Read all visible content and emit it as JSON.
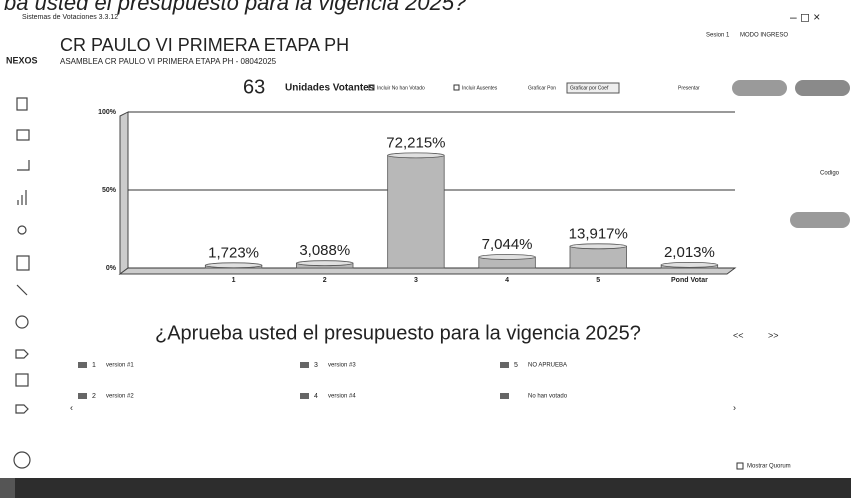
{
  "window": {
    "banner": "ba usted el presupuesto para la vigencia 2025?",
    "app_title": "Sistemas de Votaciones 3.3.12",
    "header": {
      "title": "CR PAULO VI PRIMERA ETAPA PH",
      "logo": "NEXOS",
      "subtitle": "ASAMBLEA CR PAULO VI PRIMERA ETAPA PH - 08042025",
      "session": "Sesion 1",
      "mode": "MODO INGRESO"
    },
    "toolbar": {
      "count": "63",
      "count_label": "Unidades Votantes",
      "options": [
        "Incluir No han Votado",
        "Incluir Ausentes"
      ],
      "graph_pon": "Graficar Pon",
      "graph_coef": "Graficar por Coef",
      "present": "Presentar"
    },
    "side_label": "Codigo",
    "question": "¿Aprueba usted el presupuesto para la vigencia 2025?",
    "nav": [
      "<<",
      ">>"
    ],
    "legend": [
      {
        "key": "1",
        "label": "version #1"
      },
      {
        "key": "2",
        "label": "version #2"
      },
      {
        "key": "3",
        "label": "version #3"
      },
      {
        "key": "4",
        "label": "version #4"
      },
      {
        "key": "5",
        "label": "NO APRUEBA"
      },
      {
        "label": "No han votado"
      }
    ],
    "quorum": "Mostrar Quorum"
  },
  "chart_data": {
    "type": "bar",
    "categories": [
      "1",
      "2",
      "3",
      "4",
      "5",
      "Pond Votar"
    ],
    "values": [
      1.723,
      3.088,
      72.215,
      7.044,
      13.917,
      2.013
    ],
    "value_labels": [
      "1,723%",
      "3,088%",
      "72,215%",
      "7,044%",
      "13,917%",
      "2,013%"
    ],
    "color": "#b8b8b8",
    "ylim": [
      0,
      100
    ],
    "yticks": [
      {
        "value": 0,
        "label": "0%"
      },
      {
        "value": 50,
        "label": "50%"
      },
      {
        "value": 100,
        "label": "100%"
      }
    ],
    "grid": true
  }
}
